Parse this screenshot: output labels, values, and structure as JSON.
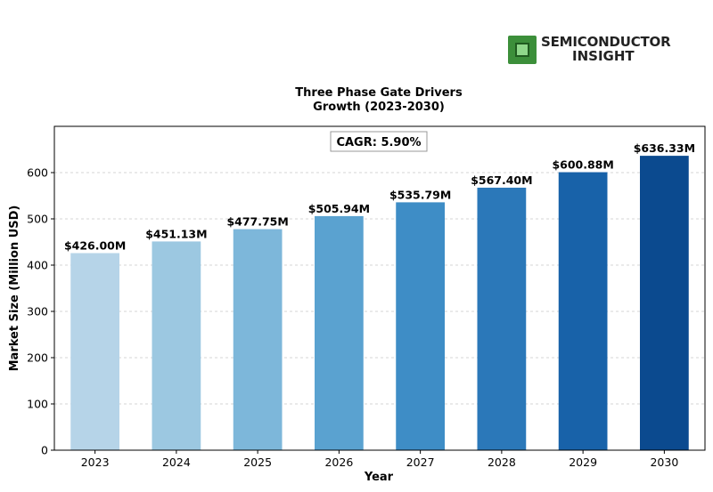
{
  "logo": {
    "line1": "SEMICONDUCTOR",
    "line2": "INSIGHT",
    "icon": "chip-icon",
    "color": "#3c8f3a"
  },
  "chart_data": {
    "type": "bar",
    "title_lines": [
      "Three Phase Gate Drivers",
      "Growth (2023-2030)"
    ],
    "xlabel": "Year",
    "ylabel": "Market Size (Million USD)",
    "annotation": "CAGR: 5.90%",
    "categories": [
      "2023",
      "2024",
      "2025",
      "2026",
      "2027",
      "2028",
      "2029",
      "2030"
    ],
    "values": [
      426.0,
      451.13,
      477.75,
      505.94,
      535.79,
      567.4,
      600.88,
      636.33
    ],
    "data_labels": [
      "$426.00M",
      "$451.13M",
      "$477.75M",
      "$505.94M",
      "$535.79M",
      "$567.40M",
      "$600.88M",
      "$636.33M"
    ],
    "colors": [
      "#b6d4e8",
      "#9cc8e1",
      "#7db7da",
      "#5aa2d0",
      "#3e8dc6",
      "#2b78b9",
      "#1862a9",
      "#0b4a8f"
    ],
    "ylim": [
      0,
      700
    ],
    "yticks": [
      0,
      100,
      200,
      300,
      400,
      500,
      600
    ],
    "grid": "horizontal-dashed"
  }
}
